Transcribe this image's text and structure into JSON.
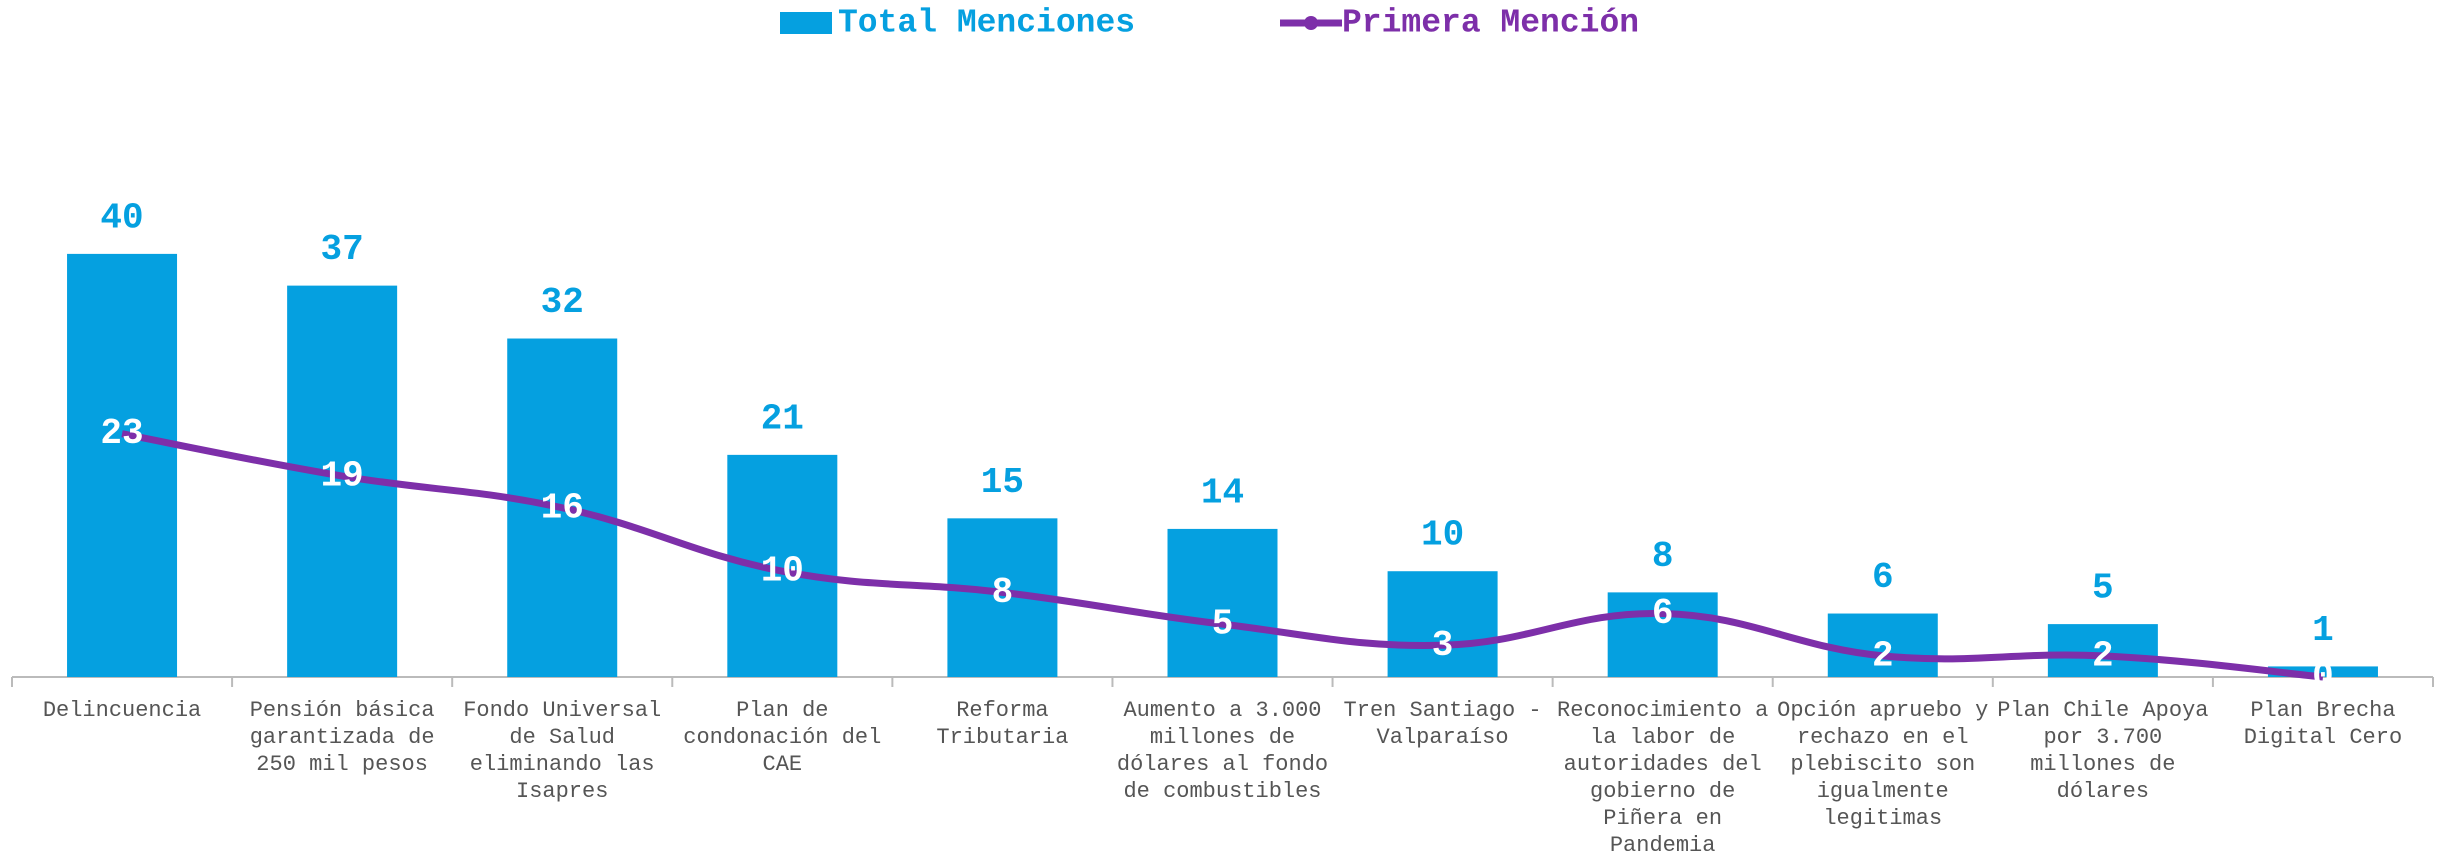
{
  "chart_data": {
    "type": "bar-line",
    "categories": [
      "Delincuencia",
      "Pensión básica garantizada de 250 mil pesos",
      "Fondo Universal de Salud eliminando las Isapres",
      "Plan de condonación del CAE",
      "Reforma Tributaria",
      "Aumento a 3.000 millones de dólares al fondo de combustibles",
      "Tren Santiago - Valparaíso",
      "Reconocimiento a la labor de autoridades del gobierno de Piñera en Pandemia",
      "Opción apruebo y rechazo en el plebiscito son igualmente legitimas",
      "Plan Chile Apoya por 3.700 millones de dólares",
      "Plan Brecha Digital Cero"
    ],
    "series": [
      {
        "name": "Total Menciones",
        "type": "bar",
        "color": "#05a0e0",
        "values": [
          40,
          37,
          32,
          21,
          15,
          14,
          10,
          8,
          6,
          5,
          1
        ]
      },
      {
        "name": "Primera Mención",
        "type": "line",
        "color": "#7d2fa9",
        "values": [
          23,
          19,
          16,
          10,
          8,
          5,
          3,
          6,
          2,
          2,
          0
        ]
      }
    ],
    "ylim": [
      0,
      45
    ]
  }
}
